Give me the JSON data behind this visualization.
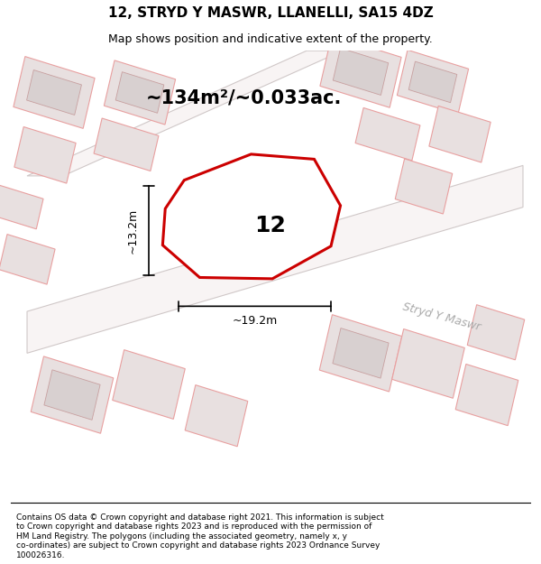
{
  "title": "12, STRYD Y MASWR, LLANELLI, SA15 4DZ",
  "subtitle": "Map shows position and indicative extent of the property.",
  "area_text": "~134m²/~0.033ac.",
  "label_number": "12",
  "dim_width": "~19.2m",
  "dim_height": "~13.2m",
  "street_label_main": "Stryd Y Maswr",
  "street_label_right": "Stryd Y Maswr",
  "footer_text": "Contains OS data © Crown copyright and database right 2021. This information is subject\nto Crown copyright and database rights 2023 and is reproduced with the permission of\nHM Land Registry. The polygons (including the associated geometry, namely x, y\nco-ordinates) are subject to Crown copyright and database rights 2023 Ordnance Survey\n100026316.",
  "bg_color": "#ffffff",
  "map_bg": "#f0eaea",
  "plot_outline_color": "#cc0000",
  "neighbor_fill": "#e8e0e0",
  "neighbor_stroke": "#e8a0a0",
  "inner_fill": "#d8d0d0",
  "inner_stroke": "#c8a0a0",
  "road_fill": "#f8f4f4",
  "road_stroke": "#d0c8c8",
  "dim_line_color": "#000000",
  "street_label_color": "#aaaaaa",
  "title_fontsize": 11,
  "subtitle_fontsize": 9,
  "area_fontsize": 15,
  "number_fontsize": 18,
  "dim_fontsize": 9,
  "street_fontsize": 9,
  "footer_fontsize": 6.5
}
